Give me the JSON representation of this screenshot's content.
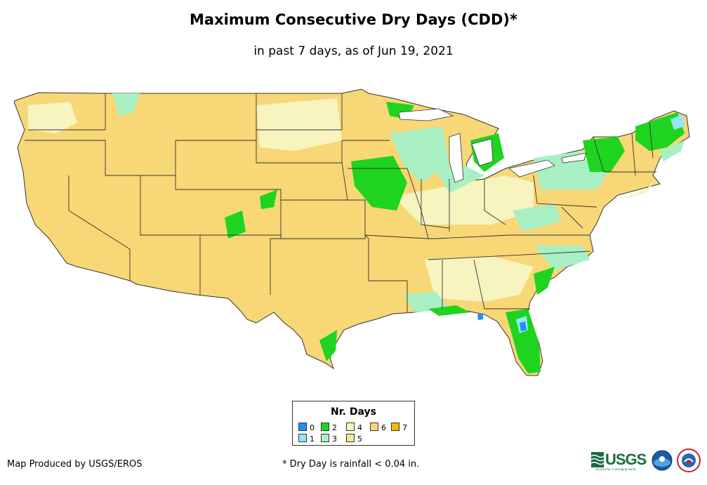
{
  "title": "Maximum Consecutive Dry Days (CDD)*",
  "subtitle": "in past 7 days, as of Jun 19, 2021",
  "legend": {
    "title": "Nr. Days",
    "items": [
      {
        "label": "0",
        "color": "#1e90ff"
      },
      {
        "label": "1",
        "color": "#8ee8f7"
      },
      {
        "label": "2",
        "color": "#1fd41f"
      },
      {
        "label": "3",
        "color": "#a8f0c4"
      },
      {
        "label": "4",
        "color": "#f8f4c0"
      },
      {
        "label": "5",
        "color": "#fae88a"
      },
      {
        "label": "6",
        "color": "#f7d776"
      },
      {
        "label": "7",
        "color": "#f6b800"
      }
    ]
  },
  "footer": {
    "credit": "Map Produced by USGS/EROS",
    "footnote": "* Dry Day is rainfall < 0.04 in."
  },
  "logos": {
    "usgs": "USGS",
    "usgs_tagline": "science for a changing world"
  },
  "colors": {
    "base": "#f7d776",
    "state_border": "#333333"
  }
}
